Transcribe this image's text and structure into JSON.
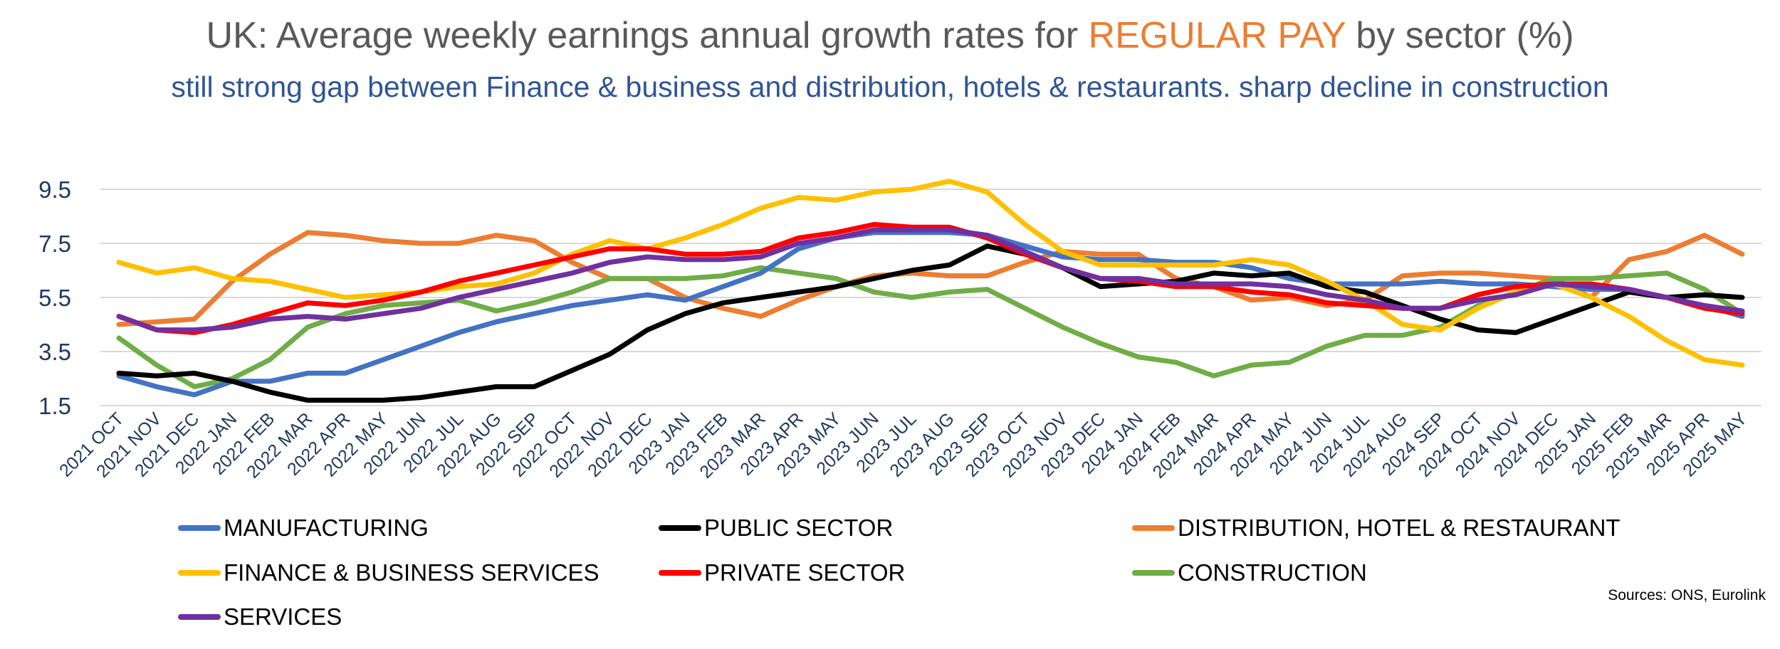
{
  "header": {
    "title_prefix": "UK: Average weekly earnings annual growth rates for ",
    "title_highlight": "REGULAR PAY",
    "title_suffix": " by sector (%)",
    "subtitle": "still strong gap between Finance & business and distribution, hotels & restaurants. sharp decline in construction"
  },
  "source": "Sources:  ONS,  Eurolink",
  "chart_data": {
    "type": "line",
    "title": "UK: Average weekly earnings annual growth rates for REGULAR PAY by sector (%)",
    "subtitle": "still strong gap between Finance & business and distribution, hotels & restaurants. sharp decline in construction",
    "xlabel": "",
    "ylabel": "",
    "ylim": [
      1.5,
      9.5
    ],
    "yticks": [
      "1.5",
      "3.5",
      "5.5",
      "7.5",
      "9.5"
    ],
    "grid": true,
    "legend_position": "bottom",
    "categories": [
      "2021 OCT",
      "2021 NOV",
      "2021 DEC",
      "2022 JAN",
      "2022 FEB",
      "2022 MAR",
      "2022 APR",
      "2022 MAY",
      "2022 JUN",
      "2022 JUL",
      "2022 AUG",
      "2022 SEP",
      "2022 OCT",
      "2022 NOV",
      "2022 DEC",
      "2023 JAN",
      "2023 FEB",
      "2023 MAR",
      "2023 APR",
      "2023 MAY",
      "2023 JUN",
      "2023 JUL",
      "2023 AUG",
      "2023 SEP",
      "2023 OCT",
      "2023 NOV",
      "2023 DEC",
      "2024 JAN",
      "2024 FEB",
      "2024 MAR",
      "2024 APR",
      "2024 MAY",
      "2024 JUN",
      "2024 JUL",
      "2024 AUG",
      "2024 SEP",
      "2024 OCT",
      "2024 NOV",
      "2024 DEC",
      "2025 JAN",
      "2025 FEB",
      "2025 MAR",
      "2025 APR",
      "2025 MAY"
    ],
    "series": [
      {
        "name": "MANUFACTURING",
        "color": "#4472C4",
        "values": [
          2.6,
          2.2,
          1.9,
          2.4,
          2.4,
          2.7,
          2.7,
          3.2,
          3.7,
          4.2,
          4.6,
          4.9,
          5.2,
          5.4,
          5.6,
          5.4,
          5.9,
          6.4,
          7.3,
          7.7,
          7.9,
          7.9,
          7.9,
          7.8,
          7.4,
          7.0,
          6.9,
          6.9,
          6.8,
          6.8,
          6.6,
          6.2,
          6.0,
          6.0,
          6.0,
          6.1,
          6.0,
          6.0,
          5.9,
          5.8,
          5.8,
          5.5,
          5.2,
          4.8
        ]
      },
      {
        "name": "PUBLIC SECTOR",
        "color": "#000000",
        "values": [
          2.7,
          2.6,
          2.7,
          2.4,
          2.0,
          1.7,
          1.7,
          1.7,
          1.8,
          2.0,
          2.2,
          2.2,
          2.8,
          3.4,
          4.3,
          4.9,
          5.3,
          5.5,
          5.7,
          5.9,
          6.2,
          6.5,
          6.7,
          7.4,
          7.1,
          6.6,
          5.9,
          6.0,
          6.1,
          6.4,
          6.3,
          6.4,
          5.9,
          5.7,
          5.2,
          4.7,
          4.3,
          4.2,
          4.7,
          5.2,
          5.7,
          5.5,
          5.6,
          5.5
        ]
      },
      {
        "name": "DISTRIBUTION, HOTEL & RESTAURANT",
        "color": "#ED7D31",
        "values": [
          4.5,
          4.6,
          4.7,
          6.1,
          7.1,
          7.9,
          7.8,
          7.6,
          7.5,
          7.5,
          7.8,
          7.6,
          6.8,
          6.2,
          6.2,
          5.5,
          5.1,
          4.8,
          5.4,
          5.9,
          6.3,
          6.4,
          6.3,
          6.3,
          6.8,
          7.2,
          7.1,
          7.1,
          6.2,
          5.9,
          5.4,
          5.5,
          5.2,
          5.4,
          6.3,
          6.4,
          6.4,
          6.3,
          6.2,
          5.5,
          6.9,
          7.2,
          7.8,
          7.1
        ]
      },
      {
        "name": "FINANCE & BUSINESS SERVICES",
        "color": "#FFC000",
        "values": [
          6.8,
          6.4,
          6.6,
          6.2,
          6.1,
          5.8,
          5.5,
          5.6,
          5.7,
          5.9,
          6.0,
          6.4,
          7.1,
          7.6,
          7.3,
          7.7,
          8.2,
          8.8,
          9.2,
          9.1,
          9.4,
          9.5,
          9.8,
          9.4,
          8.2,
          7.2,
          6.7,
          6.7,
          6.7,
          6.7,
          6.9,
          6.7,
          6.1,
          5.4,
          4.5,
          4.3,
          5.1,
          5.7,
          6.0,
          5.5,
          4.8,
          3.9,
          3.2,
          3.0
        ]
      },
      {
        "name": "PRIVATE SECTOR",
        "color": "#FF0000",
        "values": [
          4.8,
          4.3,
          4.2,
          4.5,
          4.9,
          5.3,
          5.2,
          5.4,
          5.7,
          6.1,
          6.4,
          6.7,
          7.0,
          7.3,
          7.3,
          7.1,
          7.1,
          7.2,
          7.7,
          7.9,
          8.2,
          8.1,
          8.1,
          7.7,
          7.1,
          6.6,
          6.2,
          6.1,
          5.9,
          5.9,
          5.7,
          5.6,
          5.3,
          5.2,
          5.1,
          5.1,
          5.6,
          5.9,
          6.0,
          6.0,
          5.8,
          5.5,
          5.1,
          4.9
        ]
      },
      {
        "name": "CONSTRUCTION",
        "color": "#70AD47",
        "values": [
          4.0,
          3.0,
          2.2,
          2.5,
          3.2,
          4.4,
          4.9,
          5.2,
          5.3,
          5.4,
          5.0,
          5.3,
          5.7,
          6.2,
          6.2,
          6.2,
          6.3,
          6.6,
          6.4,
          6.2,
          5.7,
          5.5,
          5.7,
          5.8,
          5.1,
          4.4,
          3.8,
          3.3,
          3.1,
          2.6,
          3.0,
          3.1,
          3.7,
          4.1,
          4.1,
          4.4,
          5.2,
          5.7,
          6.2,
          6.2,
          6.3,
          6.4,
          5.8,
          4.9
        ]
      },
      {
        "name": "SERVICES",
        "color": "#7030A0",
        "values": [
          4.8,
          4.3,
          4.3,
          4.4,
          4.7,
          4.8,
          4.7,
          4.9,
          5.1,
          5.5,
          5.8,
          6.1,
          6.4,
          6.8,
          7.0,
          6.9,
          6.9,
          7.0,
          7.5,
          7.7,
          8.0,
          8.0,
          8.0,
          7.8,
          7.2,
          6.6,
          6.2,
          6.2,
          6.0,
          6.0,
          6.0,
          5.9,
          5.6,
          5.4,
          5.1,
          5.1,
          5.4,
          5.6,
          6.0,
          5.9,
          5.8,
          5.5,
          5.2,
          5.0
        ]
      }
    ]
  }
}
